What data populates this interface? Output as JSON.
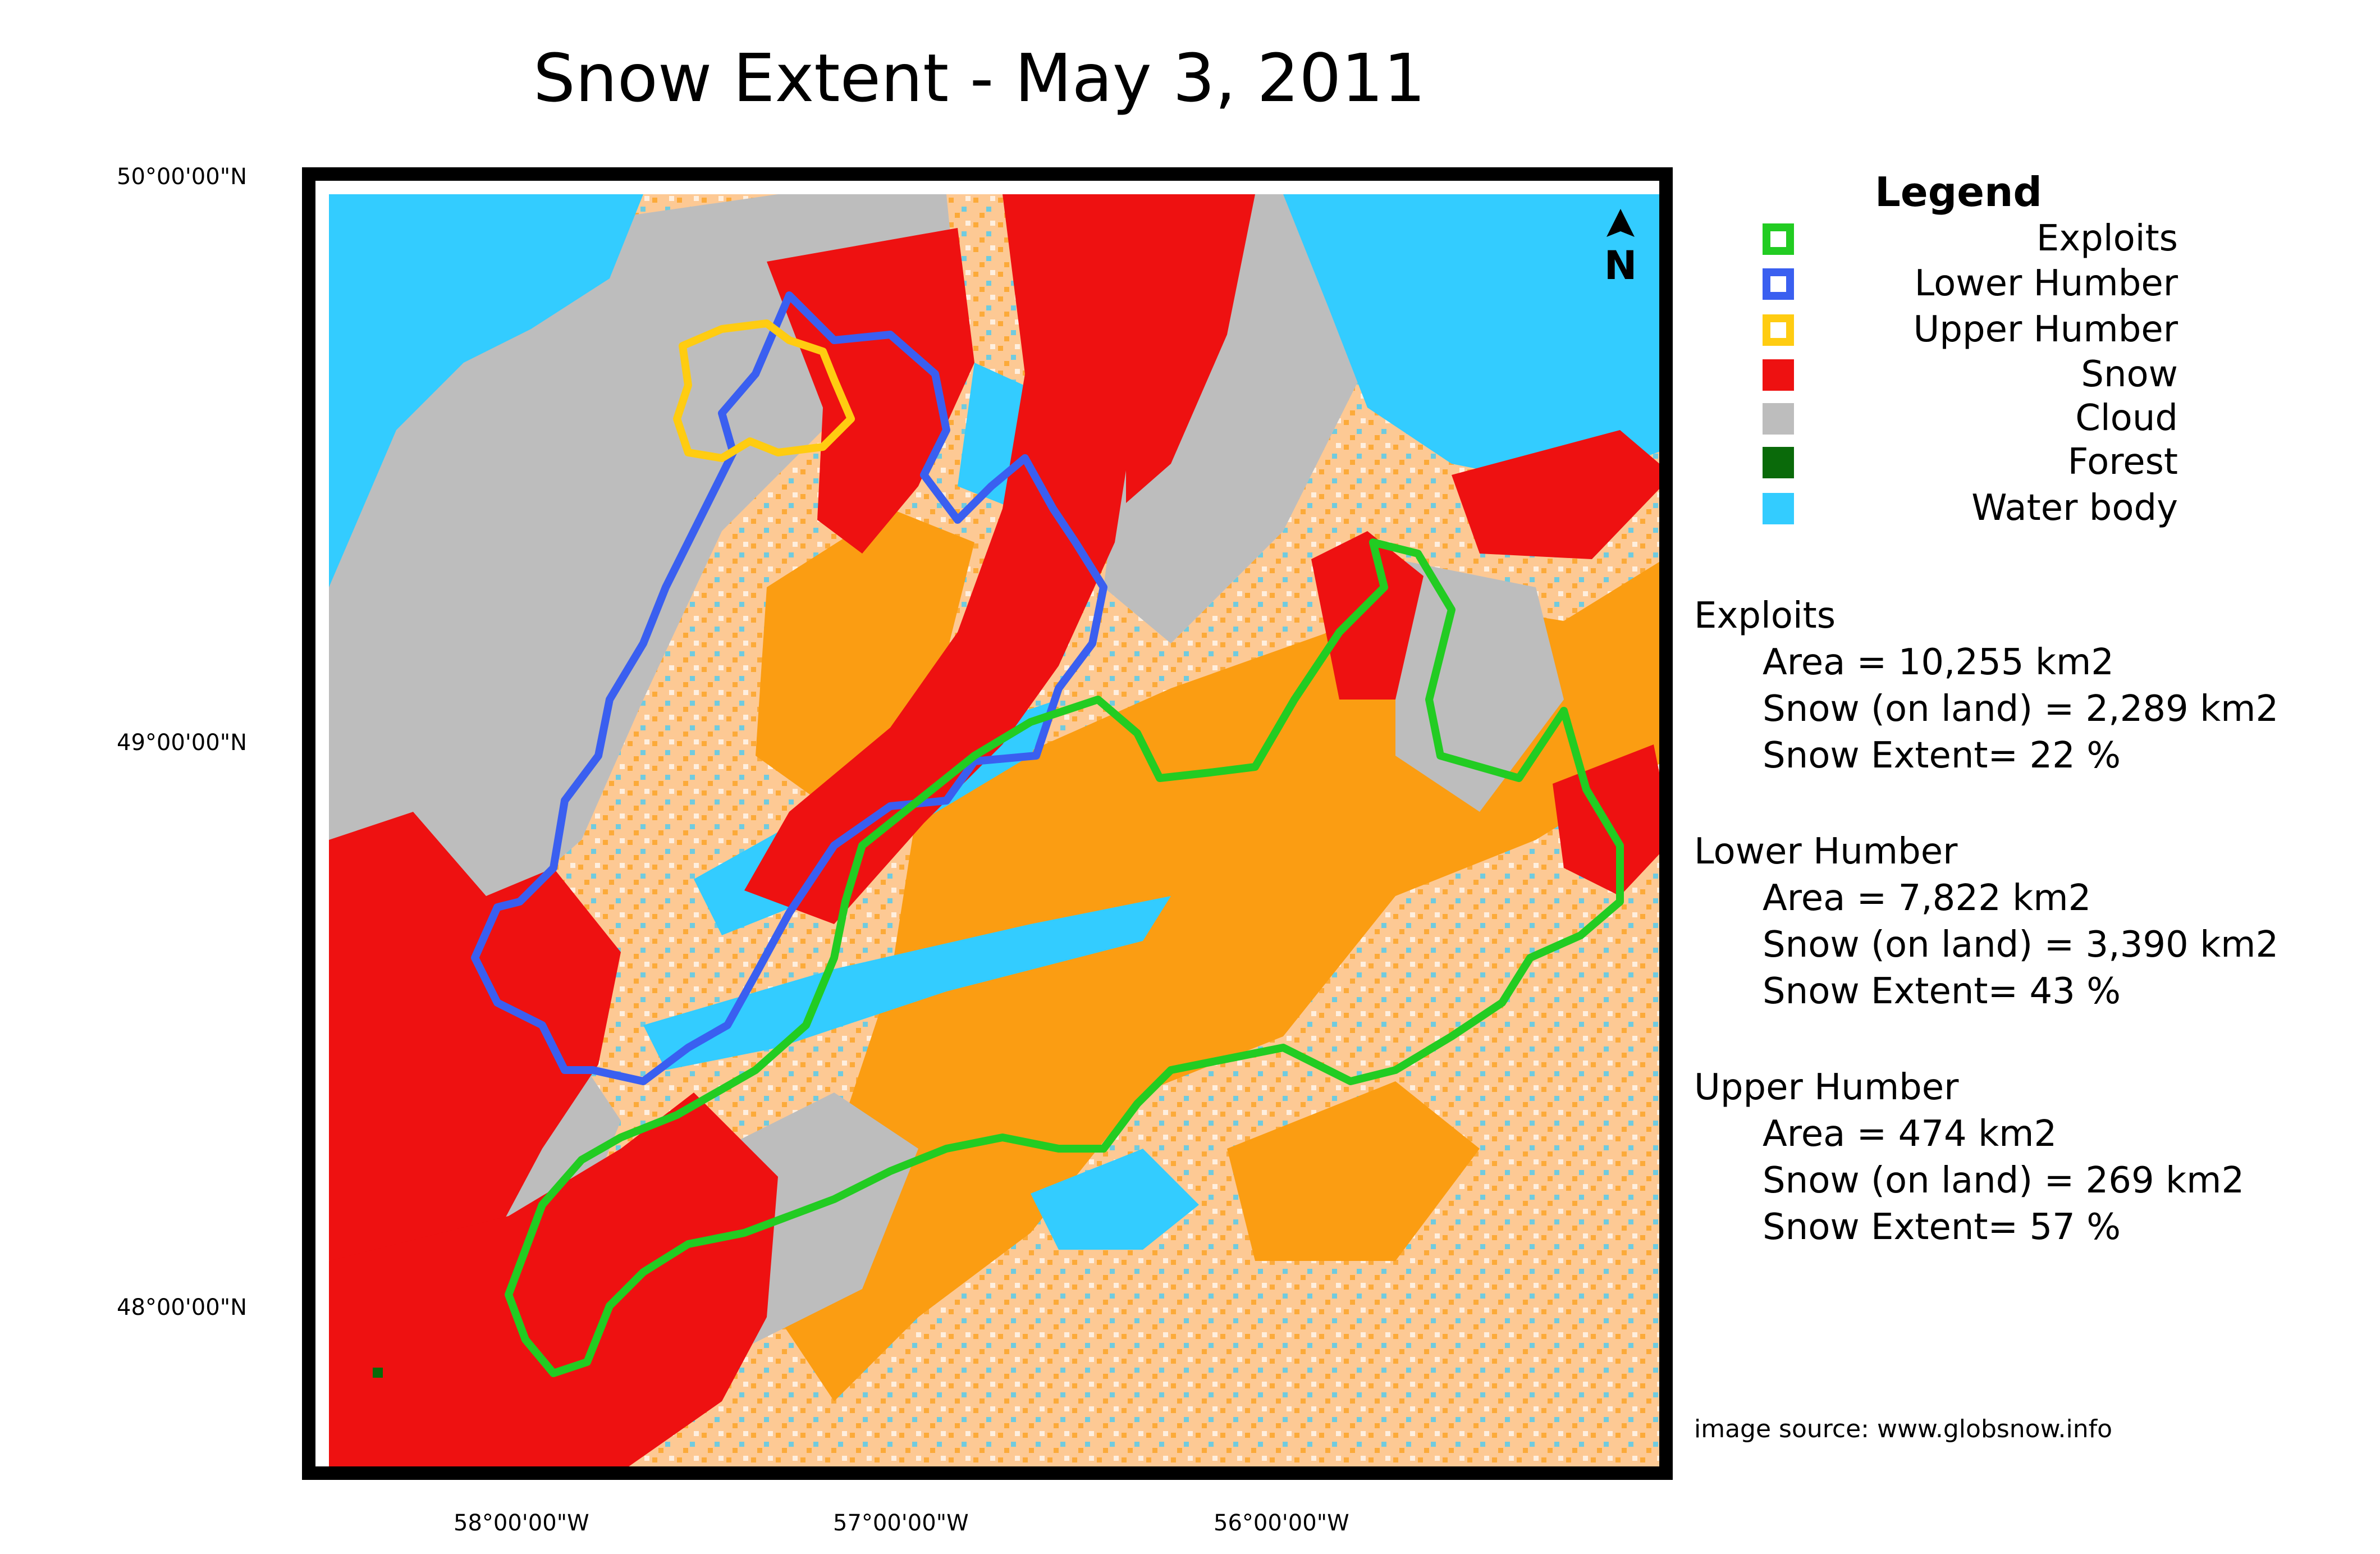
{
  "title": "Snow Extent - May 3, 2011",
  "lat_labels": [
    "50°00'00\"N",
    "49°00'00\"N",
    "48°00'00\"N"
  ],
  "lon_labels": [
    "58°00'00\"W",
    "57°00'00\"W",
    "56°00'00\"W"
  ],
  "north_arrow": "N",
  "legend": {
    "title": "Legend",
    "items": [
      {
        "label": "Exploits",
        "color": "#22cc22",
        "style": "outline"
      },
      {
        "label": "Lower Humber",
        "color": "#3a5ff0",
        "style": "outline"
      },
      {
        "label": "Upper Humber",
        "color": "#ffcc11",
        "style": "outline"
      },
      {
        "label": "Snow",
        "color": "#ee1111",
        "style": "fill"
      },
      {
        "label": "Cloud",
        "color": "#bdbdbd",
        "style": "fill"
      },
      {
        "label": "Forest",
        "color": "#0a6a0a",
        "style": "fill"
      },
      {
        "label": "Water body",
        "color": "#33ccff",
        "style": "fill"
      }
    ]
  },
  "unlabeled_colors": {
    "land_light": "#fdc994",
    "land_orange": "#fb9d12"
  },
  "stats": [
    {
      "name": "Exploits",
      "area": "Area = 10,255 km2",
      "snow": "Snow (on land) = 2,289 km2",
      "extent": "Snow Extent= 22 %"
    },
    {
      "name": "Lower Humber",
      "area": "Area = 7,822 km2",
      "snow": "Snow (on land) = 3,390 km2",
      "extent": "Snow Extent= 43 %"
    },
    {
      "name": "Upper Humber",
      "area": "Area = 474 km2",
      "snow": "Snow (on land) = 269 km2",
      "extent": "Snow Extent= 57 %"
    }
  ],
  "source": "image source: www.globsnow.info"
}
